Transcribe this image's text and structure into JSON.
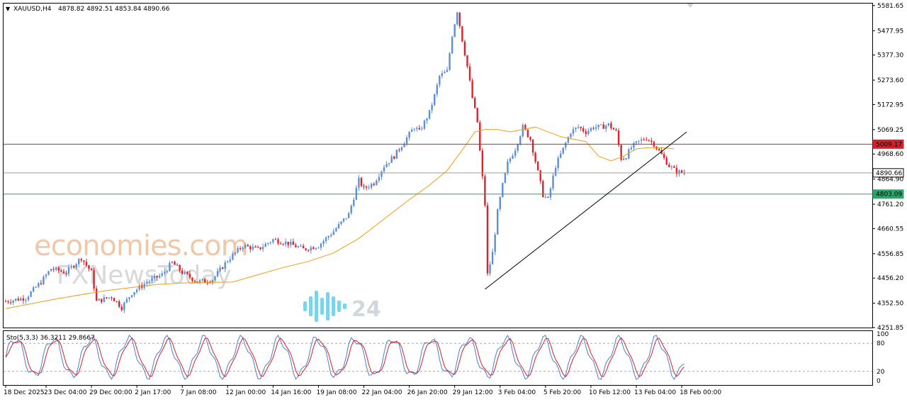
{
  "header": {
    "symbol": "XAUUSD,H4",
    "ohlc": "4878.82 4892.51 4853.84 4890.66"
  },
  "osc_label": "Sto(5,3,3) 36.3211 29.8667",
  "watermarks": {
    "brand1": "economies.com",
    "brand2": "FXNewsToday",
    "brand3": "24"
  },
  "colors": {
    "bull": "#5b8fd6",
    "bear": "#e0212a",
    "ma": "#f39c12",
    "res_line": "#d6212b",
    "sup_line": "#27a86b",
    "price_line": "#9e9e9e",
    "sto_main": "#4a7fd0",
    "sto_signal": "#d6212b"
  },
  "chart_data": {
    "type": "candlestick",
    "symbol": "XAUUSD",
    "timeframe": "H4",
    "ylim": [
      4251.85,
      5590
    ],
    "y_ticks": [
      5581.65,
      5477.95,
      5377.3,
      5273.6,
      5172.95,
      5069.25,
      4968.6,
      4864.9,
      4761.2,
      4660.55,
      4556.85,
      4456.2,
      4352.5,
      4251.85
    ],
    "x_ticks": [
      "18 Dec 2025",
      "23 Dec 04:00",
      "29 Dec 00:00",
      "2 Jan 17:00",
      "7 Jan 08:00",
      "12 Jan 00:00",
      "14 Jan 16:00",
      "19 Jan 08:00",
      "22 Jan 04:00",
      "26 Jan 20:00",
      "29 Jan 12:00",
      "3 Feb 04:00",
      "5 Feb 20:00",
      "10 Feb 12:00",
      "13 Feb 04:00",
      "18 Feb 00:00"
    ],
    "x_tick_index": [
      0,
      16,
      34,
      52,
      70,
      88,
      106,
      124,
      142,
      160,
      178,
      196,
      214,
      232,
      250,
      268
    ],
    "price_labels": [
      {
        "value": 5009.17,
        "text": "5009.17",
        "kind": "resistance"
      },
      {
        "value": 4890.66,
        "text": "4890.66",
        "kind": "current"
      },
      {
        "value": 4803.09,
        "text": "4803.09",
        "kind": "support"
      }
    ],
    "trendline": {
      "from": {
        "index": 190,
        "price": 4410
      },
      "to": {
        "index": 270,
        "price": 5060
      }
    },
    "close_path": [
      [
        0,
        4360
      ],
      [
        8,
        4375
      ],
      [
        14,
        4440
      ],
      [
        18,
        4495
      ],
      [
        24,
        4480
      ],
      [
        30,
        4540
      ],
      [
        34,
        4480
      ],
      [
        36,
        4360
      ],
      [
        42,
        4380
      ],
      [
        46,
        4335
      ],
      [
        50,
        4395
      ],
      [
        56,
        4440
      ],
      [
        62,
        4470
      ],
      [
        66,
        4520
      ],
      [
        70,
        4480
      ],
      [
        76,
        4440
      ],
      [
        82,
        4450
      ],
      [
        88,
        4530
      ],
      [
        94,
        4590
      ],
      [
        100,
        4575
      ],
      [
        106,
        4615
      ],
      [
        112,
        4600
      ],
      [
        118,
        4575
      ],
      [
        124,
        4590
      ],
      [
        130,
        4650
      ],
      [
        136,
        4720
      ],
      [
        140,
        4860
      ],
      [
        142,
        4825
      ],
      [
        146,
        4850
      ],
      [
        150,
        4920
      ],
      [
        154,
        4960
      ],
      [
        158,
        5020
      ],
      [
        162,
        5080
      ],
      [
        164,
        5060
      ],
      [
        168,
        5140
      ],
      [
        170,
        5210
      ],
      [
        172,
        5290
      ],
      [
        175,
        5310
      ],
      [
        177,
        5460
      ],
      [
        179,
        5560
      ],
      [
        181,
        5440
      ],
      [
        183,
        5330
      ],
      [
        185,
        5200
      ],
      [
        187,
        5100
      ],
      [
        188,
        4980
      ],
      [
        190,
        4760
      ],
      [
        191,
        4470
      ],
      [
        193,
        4560
      ],
      [
        195,
        4730
      ],
      [
        197,
        4840
      ],
      [
        199,
        4930
      ],
      [
        202,
        4990
      ],
      [
        205,
        5080
      ],
      [
        208,
        5030
      ],
      [
        210,
        4940
      ],
      [
        213,
        4800
      ],
      [
        215,
        4780
      ],
      [
        218,
        4920
      ],
      [
        221,
        4990
      ],
      [
        224,
        5060
      ],
      [
        227,
        5080
      ],
      [
        230,
        5060
      ],
      [
        233,
        5080
      ],
      [
        236,
        5080
      ],
      [
        239,
        5090
      ],
      [
        242,
        5060
      ],
      [
        244,
        4950
      ],
      [
        246,
        4960
      ],
      [
        248,
        4995
      ],
      [
        251,
        5020
      ],
      [
        254,
        5035
      ],
      [
        257,
        5010
      ],
      [
        260,
        4965
      ],
      [
        263,
        4920
      ],
      [
        266,
        4895
      ],
      [
        269,
        4891
      ]
    ],
    "ma_path": [
      [
        0,
        4330
      ],
      [
        20,
        4370
      ],
      [
        40,
        4405
      ],
      [
        60,
        4430
      ],
      [
        70,
        4436
      ],
      [
        90,
        4440
      ],
      [
        100,
        4470
      ],
      [
        110,
        4500
      ],
      [
        120,
        4525
      ],
      [
        130,
        4560
      ],
      [
        140,
        4620
      ],
      [
        150,
        4700
      ],
      [
        160,
        4780
      ],
      [
        168,
        4840
      ],
      [
        175,
        4900
      ],
      [
        182,
        5000
      ],
      [
        186,
        5060
      ],
      [
        190,
        5070
      ],
      [
        195,
        5070
      ],
      [
        200,
        5060
      ],
      [
        210,
        5080
      ],
      [
        220,
        5040
      ],
      [
        230,
        5020
      ],
      [
        235,
        4960
      ],
      [
        240,
        4940
      ],
      [
        245,
        4960
      ],
      [
        250,
        4990
      ],
      [
        255,
        4995
      ],
      [
        260,
        4995
      ],
      [
        265,
        4990
      ]
    ],
    "oscillator": {
      "name": "Sto(5,3,3)",
      "main": 36.3211,
      "signal": 29.8667,
      "levels": [
        80,
        20
      ],
      "scale_ticks": [
        100,
        80,
        20,
        0
      ]
    }
  }
}
